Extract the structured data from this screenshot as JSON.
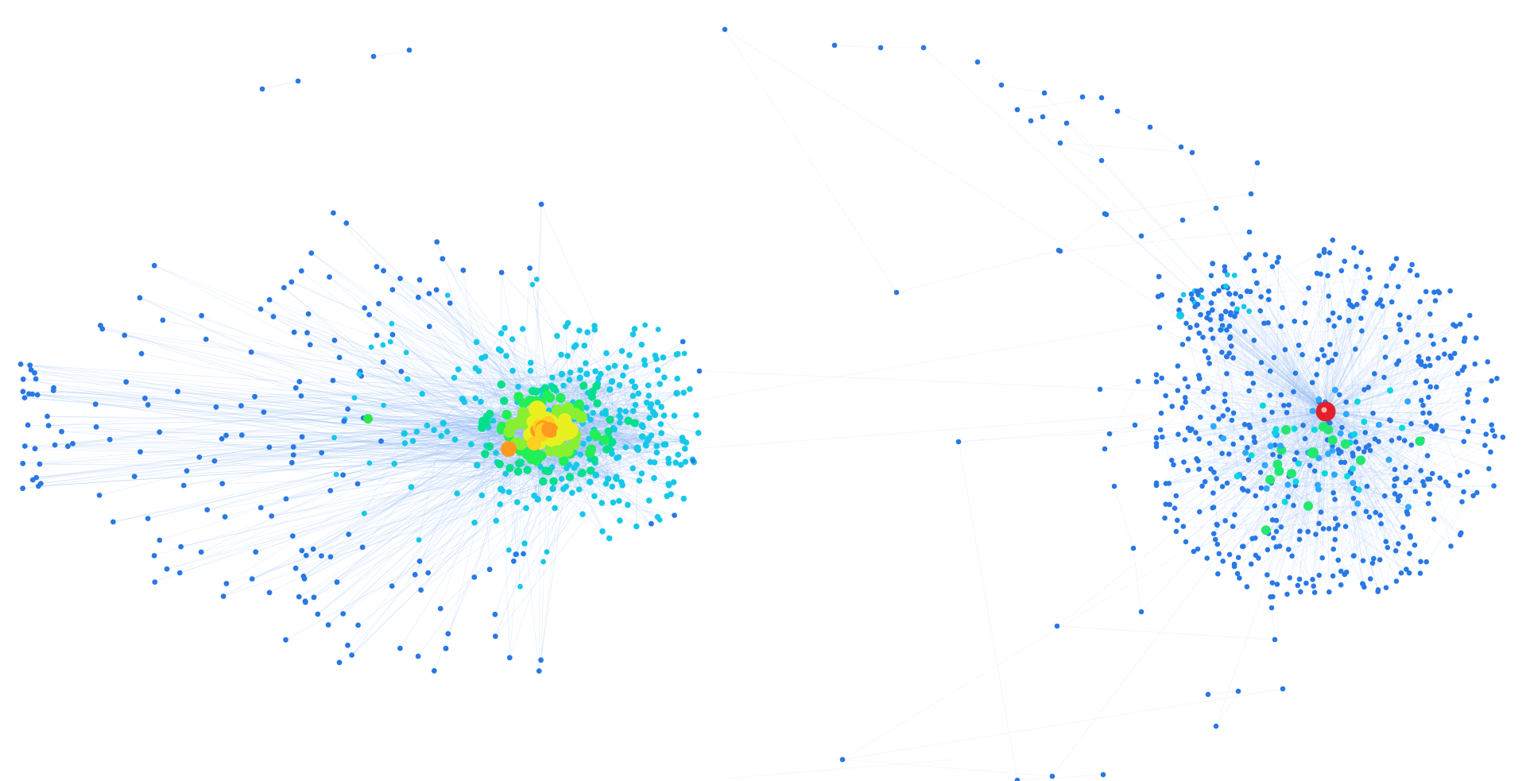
{
  "graph": {
    "type": "network-visualization",
    "clusters": [
      {
        "name": "left-cluster",
        "peripheral_nodes": 420,
        "core_nodes": 160,
        "core_colors": [
          "#00e08a",
          "#22ee55",
          "#88f030",
          "#e8f020",
          "#ffd020",
          "#ff9a20"
        ]
      },
      {
        "name": "right-cluster",
        "peripheral_nodes": 520,
        "core_nodes": 60,
        "core_colors": [
          "#30a8ff",
          "#00d8e0",
          "#22e870"
        ],
        "hub_color": "#e0202a"
      }
    ],
    "colors": {
      "background": "#ffffff",
      "edge": "#8fb8f5",
      "node_peripheral": "#2878e6",
      "node_mid": "#15c8e8",
      "node_core": "#2ae84a",
      "node_hot": "#f0e020",
      "node_warm": "#f59a20",
      "hub": "#e0202a"
    }
  }
}
